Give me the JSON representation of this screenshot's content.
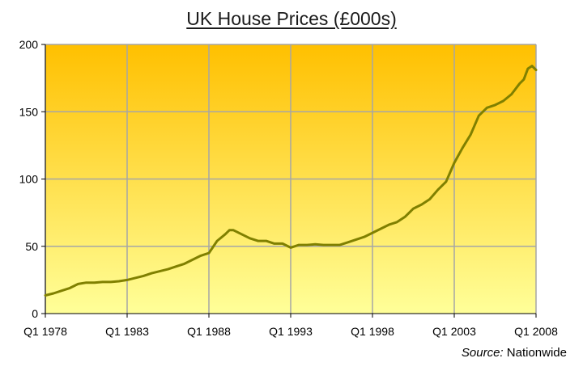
{
  "chart_data": {
    "type": "line",
    "title": "UK House Prices (£000s)",
    "xlabel": "",
    "ylabel": "",
    "ylim": [
      0,
      200
    ],
    "yticks": [
      0,
      50,
      100,
      150,
      200
    ],
    "xlim": [
      1978.0,
      2008.0
    ],
    "xticks": [
      {
        "label": "Q1 1978",
        "value": 1978
      },
      {
        "label": "Q1 1983",
        "value": 1983
      },
      {
        "label": "Q1 1988",
        "value": 1988
      },
      {
        "label": "Q1 1993",
        "value": 1993
      },
      {
        "label": "Q1 1998",
        "value": 1998
      },
      {
        "label": "Q1 2003",
        "value": 2003
      },
      {
        "label": "Q1 2008",
        "value": 2008
      }
    ],
    "grid": true,
    "legend": "none",
    "colors": {
      "line": "#808000",
      "grid": "#a6a6a6",
      "bg_top": "#ffc000",
      "bg_bottom": "#ffff99",
      "axis": "#000000"
    },
    "series": [
      {
        "x": [
          1978.0,
          1978.5,
          1979.0,
          1979.5,
          1980.0,
          1980.5,
          1981.0,
          1981.5,
          1982.0,
          1982.5,
          1983.0,
          1983.5,
          1984.0,
          1984.5,
          1985.0,
          1985.5,
          1986.0,
          1986.5,
          1987.0,
          1987.5,
          1988.0,
          1988.5,
          1989.0,
          1989.25,
          1989.5,
          1990.0,
          1990.5,
          1991.0,
          1991.5,
          1992.0,
          1992.5,
          1993.0,
          1993.5,
          1994.0,
          1994.5,
          1995.0,
          1995.5,
          1996.0,
          1996.5,
          1997.0,
          1997.5,
          1998.0,
          1998.5,
          1999.0,
          1999.5,
          2000.0,
          2000.5,
          2001.0,
          2001.5,
          2002.0,
          2002.5,
          2003.0,
          2003.5,
          2004.0,
          2004.5,
          2005.0,
          2005.5,
          2006.0,
          2006.5,
          2007.0,
          2007.25,
          2007.5,
          2007.75,
          2008.0
        ],
        "values": [
          13.5,
          15,
          17,
          19,
          22,
          23,
          23,
          23.5,
          23.5,
          24,
          25,
          26.5,
          28,
          30,
          31.5,
          33,
          35,
          37,
          40,
          43,
          45,
          54,
          59,
          62,
          62,
          59,
          56,
          54,
          54,
          52,
          52,
          49,
          51,
          51,
          51.5,
          51,
          51,
          51,
          53,
          55,
          57,
          60,
          63,
          66,
          68,
          72,
          78,
          81,
          85,
          92,
          98,
          112,
          123,
          133,
          147,
          153,
          155,
          158,
          163,
          171,
          174,
          182,
          184,
          181
        ]
      }
    ],
    "source_label": "Source:",
    "source_value": "Nationwide"
  }
}
